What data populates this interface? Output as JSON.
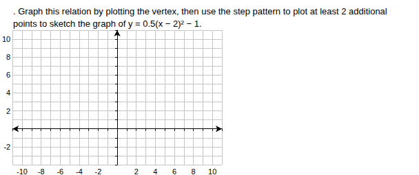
{
  "chart_data": {
    "type": "scatter",
    "title": ". Graph this relation by plotting the vertex, then use the step pattern to plot at least 2 additional\npoints to sketch the graph of y = 0.5(x − 2)² − 1.",
    "xlim": [
      -11,
      11
    ],
    "xticks": [
      -10,
      -8,
      -6,
      -4,
      -2,
      2,
      4,
      6,
      8,
      10
    ],
    "ylim": [
      -4,
      11
    ],
    "yticks": [
      -2,
      2,
      4,
      6,
      8,
      10
    ],
    "grid": true
  }
}
